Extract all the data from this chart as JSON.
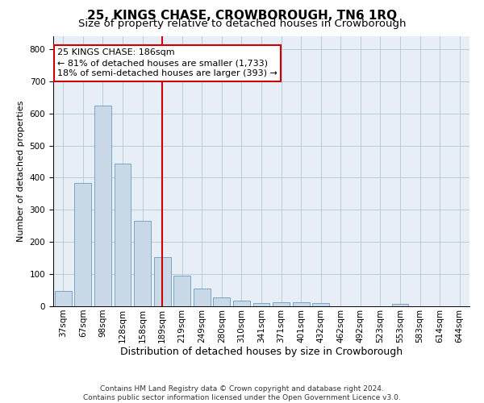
{
  "title": "25, KINGS CHASE, CROWBOROUGH, TN6 1RQ",
  "subtitle": "Size of property relative to detached houses in Crowborough",
  "xlabel": "Distribution of detached houses by size in Crowborough",
  "ylabel": "Number of detached properties",
  "categories": [
    "37sqm",
    "67sqm",
    "98sqm",
    "128sqm",
    "158sqm",
    "189sqm",
    "219sqm",
    "249sqm",
    "280sqm",
    "310sqm",
    "341sqm",
    "371sqm",
    "401sqm",
    "432sqm",
    "462sqm",
    "492sqm",
    "523sqm",
    "553sqm",
    "583sqm",
    "614sqm",
    "644sqm"
  ],
  "values": [
    48,
    383,
    625,
    443,
    265,
    152,
    95,
    55,
    28,
    18,
    10,
    12,
    12,
    10,
    0,
    0,
    0,
    7,
    0,
    0,
    0
  ],
  "bar_color": "#c9d9e8",
  "bar_edge_color": "#6a9cbf",
  "vline_x": 5,
  "vline_color": "#cc0000",
  "annotation_text": "25 KINGS CHASE: 186sqm\n← 81% of detached houses are smaller (1,733)\n18% of semi-detached houses are larger (393) →",
  "annotation_box_color": "#cc0000",
  "ylim": [
    0,
    840
  ],
  "yticks": [
    0,
    100,
    200,
    300,
    400,
    500,
    600,
    700,
    800
  ],
  "grid_color": "#b8ccd8",
  "background_color": "#e8eef5",
  "footer_line1": "Contains HM Land Registry data © Crown copyright and database right 2024.",
  "footer_line2": "Contains public sector information licensed under the Open Government Licence v3.0.",
  "title_fontsize": 11,
  "subtitle_fontsize": 9.5,
  "tick_fontsize": 7.5,
  "xlabel_fontsize": 9,
  "ylabel_fontsize": 8,
  "annotation_fontsize": 8,
  "footer_fontsize": 6.5
}
